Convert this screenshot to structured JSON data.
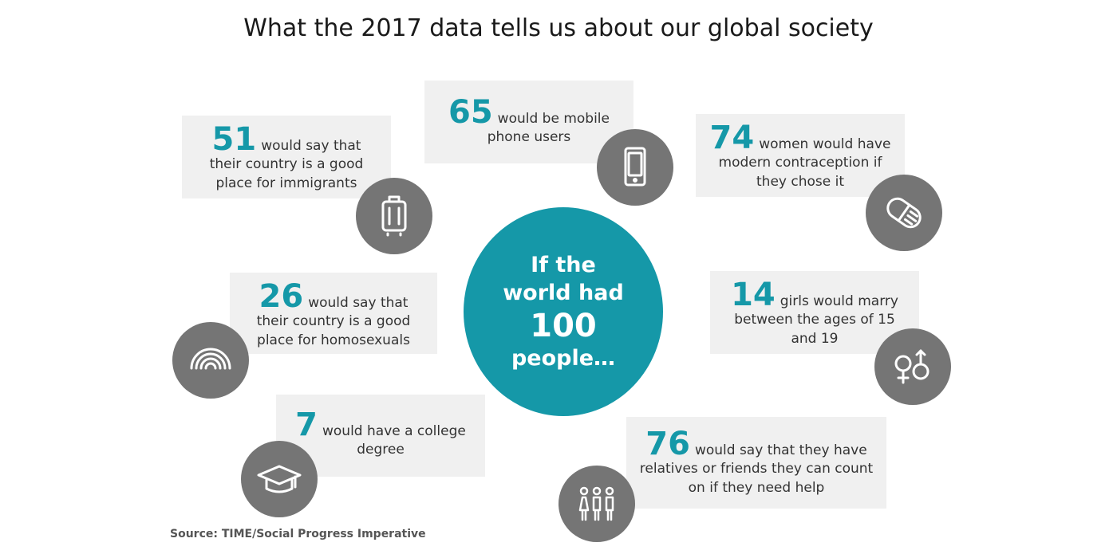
{
  "title": "What the 2017 data tells us about our global society",
  "center": {
    "line1": "If the",
    "line2": "world had",
    "number": "100",
    "line3": "people…"
  },
  "facts": [
    {
      "number": "51",
      "text1": "would say that",
      "text2": "their country is a good",
      "text3": "place for immigrants",
      "icon": "suitcase-icon"
    },
    {
      "number": "65",
      "text1": "would be mobile",
      "text2": "phone users",
      "icon": "mobile-phone-icon"
    },
    {
      "number": "74",
      "text1": "women would have",
      "text2": "modern contraception if",
      "text3": "they chose it",
      "icon": "pill-icon"
    },
    {
      "number": "26",
      "text1": "would say that",
      "text2": "their country is a good",
      "text3": "place for homosexuals",
      "icon": "rainbow-icon"
    },
    {
      "number": "14",
      "text1": "girls would marry",
      "text2": "between the ages of 15",
      "text3": "and 19",
      "icon": "gender-symbols-icon"
    },
    {
      "number": "7",
      "text1": "would have a college",
      "text2": "degree",
      "icon": "graduation-cap-icon"
    },
    {
      "number": "76",
      "text1": "would say that they have",
      "text2": "relatives or friends they can count",
      "text3": "on if they need help",
      "icon": "people-group-icon"
    }
  ],
  "source": "Source: TIME/Social Progress Imperative",
  "colors": {
    "accent": "#1598a8",
    "icon_bg": "#757575",
    "card_bg": "#f0f0f0"
  }
}
